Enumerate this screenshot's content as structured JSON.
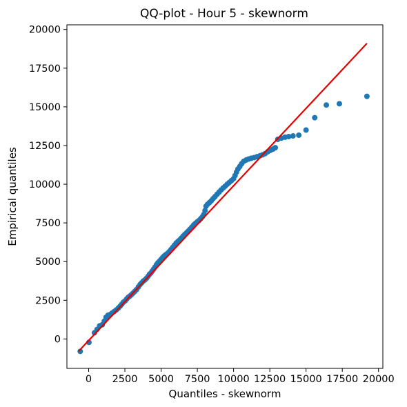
{
  "chart_data": {
    "type": "scatter",
    "title": "QQ-plot - Hour 5 - skewnorm",
    "xlabel": "Quantiles - skewnorm",
    "ylabel": "Empirical quantiles",
    "xlim": [
      -1500,
      20300
    ],
    "ylim": [
      -1900,
      20300
    ],
    "xticks": [
      0,
      2500,
      5000,
      7500,
      10000,
      12500,
      15000,
      17500,
      20000
    ],
    "xtick_labels": [
      "0",
      "2500",
      "5000",
      "7500",
      "10000",
      "12500",
      "15000",
      "17500",
      "20000"
    ],
    "yticks": [
      0,
      2500,
      5000,
      7500,
      10000,
      12500,
      15000,
      17500,
      20000
    ],
    "ytick_labels": [
      "0",
      "2500",
      "5000",
      "7500",
      "10000",
      "12500",
      "15000",
      "17500",
      "20000"
    ],
    "grid": false,
    "marker_color": "#1f77b4",
    "line_color": "#e60000",
    "reference_line": {
      "x": [
        -700,
        19200
      ],
      "y": [
        -800,
        19100
      ]
    },
    "points": [
      [
        -580,
        -800
      ],
      [
        20,
        -220
      ],
      [
        400,
        400
      ],
      [
        580,
        620
      ],
      [
        760,
        850
      ],
      [
        940,
        920
      ],
      [
        1080,
        1150
      ],
      [
        1200,
        1400
      ],
      [
        1330,
        1530
      ],
      [
        1480,
        1580
      ],
      [
        1620,
        1680
      ],
      [
        1760,
        1770
      ],
      [
        1900,
        1870
      ],
      [
        2040,
        1990
      ],
      [
        2170,
        2120
      ],
      [
        2290,
        2250
      ],
      [
        2400,
        2380
      ],
      [
        2510,
        2460
      ],
      [
        2620,
        2580
      ],
      [
        2730,
        2690
      ],
      [
        2840,
        2770
      ],
      [
        2950,
        2860
      ],
      [
        3060,
        2960
      ],
      [
        3180,
        3070
      ],
      [
        3300,
        3190
      ],
      [
        3430,
        3360
      ],
      [
        3550,
        3520
      ],
      [
        3660,
        3630
      ],
      [
        3770,
        3740
      ],
      [
        3880,
        3820
      ],
      [
        3990,
        3920
      ],
      [
        4100,
        4050
      ],
      [
        4200,
        4180
      ],
      [
        4290,
        4260
      ],
      [
        4380,
        4380
      ],
      [
        4480,
        4510
      ],
      [
        4580,
        4650
      ],
      [
        4680,
        4800
      ],
      [
        4780,
        4920
      ],
      [
        4890,
        5030
      ],
      [
        5000,
        5150
      ],
      [
        5110,
        5270
      ],
      [
        5220,
        5370
      ],
      [
        5330,
        5450
      ],
      [
        5440,
        5530
      ],
      [
        5560,
        5640
      ],
      [
        5680,
        5780
      ],
      [
        5800,
        5920
      ],
      [
        5920,
        6060
      ],
      [
        6040,
        6200
      ],
      [
        6160,
        6300
      ],
      [
        6280,
        6400
      ],
      [
        6400,
        6520
      ],
      [
        6520,
        6650
      ],
      [
        6640,
        6760
      ],
      [
        6760,
        6870
      ],
      [
        6880,
        6980
      ],
      [
        7000,
        7100
      ],
      [
        7120,
        7230
      ],
      [
        7250,
        7370
      ],
      [
        7380,
        7480
      ],
      [
        7500,
        7580
      ],
      [
        7620,
        7660
      ],
      [
        7740,
        7780
      ],
      [
        7850,
        7900
      ],
      [
        7950,
        8050
      ],
      [
        8030,
        8300
      ],
      [
        8100,
        8580
      ],
      [
        8200,
        8700
      ],
      [
        8330,
        8810
      ],
      [
        8460,
        8930
      ],
      [
        8590,
        9070
      ],
      [
        8720,
        9200
      ],
      [
        8860,
        9350
      ],
      [
        9000,
        9490
      ],
      [
        9140,
        9630
      ],
      [
        9280,
        9760
      ],
      [
        9420,
        9870
      ],
      [
        9560,
        10000
      ],
      [
        9700,
        10110
      ],
      [
        9850,
        10230
      ],
      [
        10000,
        10360
      ],
      [
        10100,
        10560
      ],
      [
        10200,
        10780
      ],
      [
        10300,
        10980
      ],
      [
        10430,
        11150
      ],
      [
        10560,
        11330
      ],
      [
        10700,
        11480
      ],
      [
        10860,
        11560
      ],
      [
        11040,
        11630
      ],
      [
        11220,
        11680
      ],
      [
        11420,
        11720
      ],
      [
        11620,
        11780
      ],
      [
        11820,
        11840
      ],
      [
        12000,
        11900
      ],
      [
        12180,
        11980
      ],
      [
        12360,
        12100
      ],
      [
        12540,
        12190
      ],
      [
        12720,
        12270
      ],
      [
        12880,
        12360
      ],
      [
        13050,
        12900
      ],
      [
        13300,
        12980
      ],
      [
        13550,
        13040
      ],
      [
        13800,
        13080
      ],
      [
        14100,
        13120
      ],
      [
        14500,
        13170
      ],
      [
        15000,
        13500
      ],
      [
        15600,
        14300
      ],
      [
        16400,
        15120
      ],
      [
        17300,
        15200
      ],
      [
        19200,
        15680
      ]
    ]
  }
}
